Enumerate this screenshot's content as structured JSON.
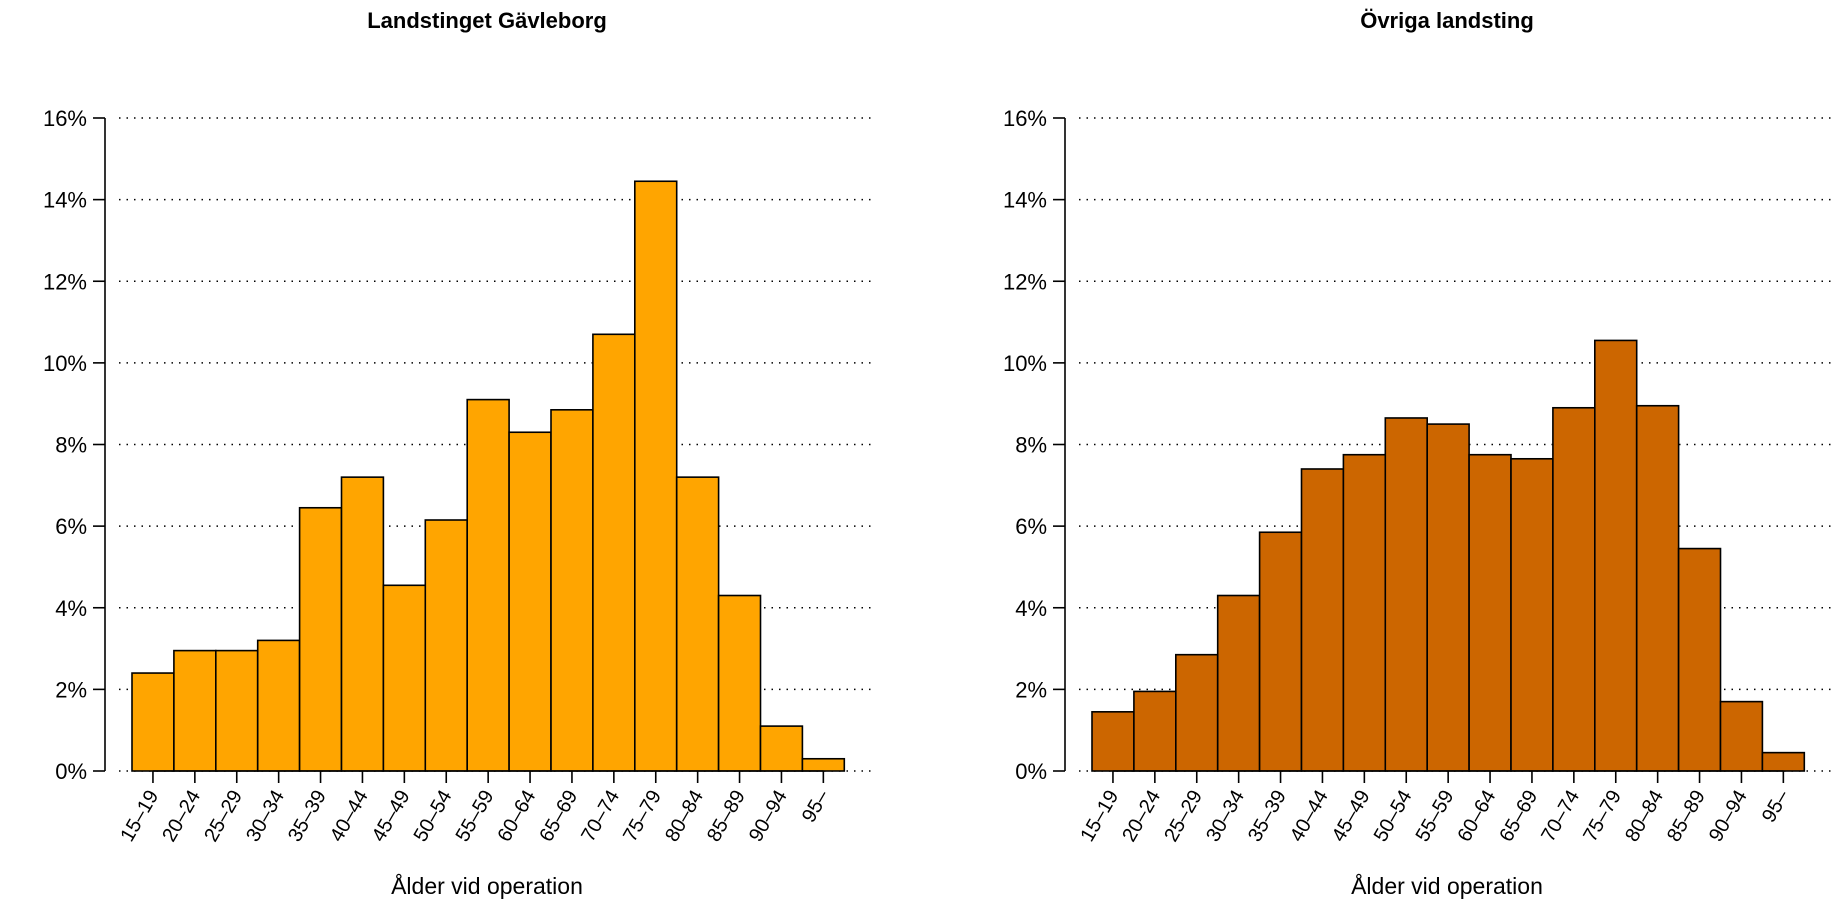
{
  "chart_data": [
    {
      "type": "bar",
      "title": "Landstinget Gävleborg",
      "xlabel": "Ålder vid operation",
      "ylabel": "",
      "ylim": [
        0,
        16
      ],
      "yticks": [
        "0%",
        "2%",
        "4%",
        "6%",
        "8%",
        "10%",
        "12%",
        "14%",
        "16%"
      ],
      "grid": "horizontal dotted",
      "bar_color": "#FFA500",
      "categories": [
        "15–19",
        "20–24",
        "25–29",
        "30–34",
        "35–39",
        "40–44",
        "45–49",
        "50–54",
        "55–59",
        "60–64",
        "65–69",
        "70–74",
        "75–79",
        "80–84",
        "85–89",
        "90–94",
        "95–"
      ],
      "values": [
        2.4,
        2.95,
        2.95,
        3.2,
        6.45,
        7.2,
        4.55,
        6.15,
        9.1,
        8.3,
        8.85,
        10.7,
        14.45,
        7.2,
        4.3,
        1.1,
        0.3
      ]
    },
    {
      "type": "bar",
      "title": "Övriga landsting",
      "xlabel": "Ålder vid operation",
      "ylabel": "",
      "ylim": [
        0,
        16
      ],
      "yticks": [
        "0%",
        "2%",
        "4%",
        "6%",
        "8%",
        "10%",
        "12%",
        "14%",
        "16%"
      ],
      "grid": "horizontal dotted",
      "bar_color": "#CC6600",
      "categories": [
        "15–19",
        "20–24",
        "25–29",
        "30–34",
        "35–39",
        "40–44",
        "45–49",
        "50–54",
        "55–59",
        "60–64",
        "65–69",
        "70–74",
        "75–79",
        "80–84",
        "85–89",
        "90–94",
        "95–"
      ],
      "values": [
        1.45,
        1.95,
        2.85,
        4.3,
        5.85,
        7.4,
        7.75,
        8.65,
        8.5,
        7.75,
        7.65,
        8.9,
        10.55,
        8.95,
        5.45,
        1.7,
        0.45
      ]
    }
  ]
}
